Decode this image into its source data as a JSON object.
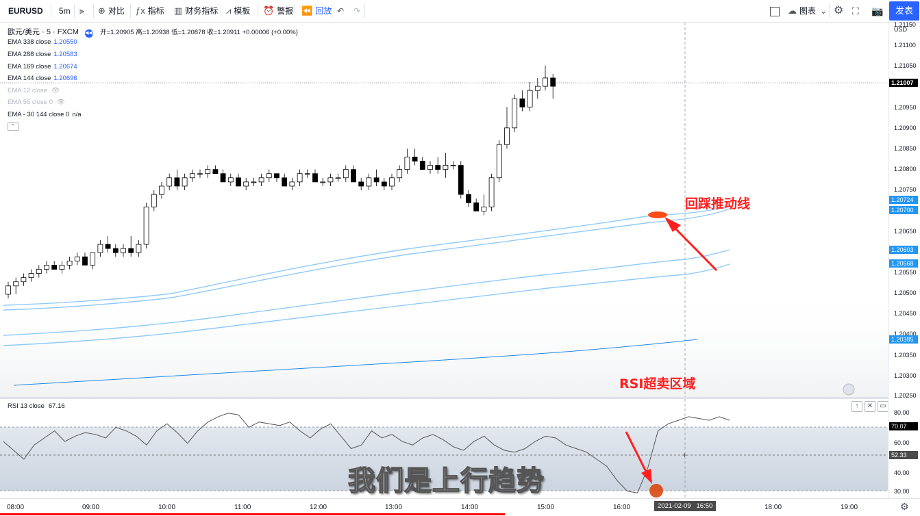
{
  "toolbar": {
    "symbol": "EURUSD",
    "interval": "5m",
    "compare": "对比",
    "indicators": "指标",
    "financials": "财务指标",
    "templates": "模板",
    "alert": "警报",
    "replay": "回放",
    "chart_menu": "图表",
    "publish": "发表"
  },
  "main_legend": {
    "title": "欧元/美元 · 5 · FXCM",
    "ohlc": "开=1.20905 高=1.20938 低=1.20878 收=1.20911 +0.00006 (+0.00%)",
    "studies": [
      {
        "name": "EMA 338 close",
        "value": "1.20550",
        "visible": true
      },
      {
        "name": "EMA 288 close",
        "value": "1.20583",
        "visible": true
      },
      {
        "name": "EMA 169 close",
        "value": "1.20674",
        "visible": true
      },
      {
        "name": "EMA 144 close",
        "value": "1.20696",
        "visible": true
      },
      {
        "name": "EMA 12 close",
        "value": "",
        "visible": false
      },
      {
        "name": "EMA 55 close 0",
        "value": "",
        "visible": false
      },
      {
        "name": "EMA - 30 144 close 0",
        "value": "n/a",
        "visible": true
      }
    ]
  },
  "rsi_legend": {
    "name": "RSI 13 close",
    "value": "67.16"
  },
  "price_axis": {
    "currency": "USD",
    "ticks": [
      "1.21150",
      "1.21100",
      "1.21050",
      "1.20950",
      "1.20900",
      "1.20850",
      "1.20800",
      "1.20750",
      "1.20650",
      "1.20550",
      "1.20500",
      "1.20450",
      "1.20400",
      "1.20350",
      "1.20300",
      "1.20250"
    ],
    "last_price": "1.21007",
    "ema_tags": [
      "1.20724",
      "1.20700",
      "1.20603",
      "1.20568",
      "1.20385"
    ]
  },
  "rsi_axis": {
    "ticks": [
      "80.00",
      "60.00",
      "50.00",
      "40.00",
      "30.00"
    ],
    "value_tag": "70.07",
    "crosshair_tag": "52.33"
  },
  "time_axis": {
    "ticks": [
      "08:00",
      "09:00",
      "10:00",
      "11:00",
      "12:00",
      "13:00",
      "14:00",
      "15:00",
      "16:00",
      "18:00",
      "19:00"
    ],
    "crosshair": "2021-02-09   16:50"
  },
  "annotations": {
    "pullback": "回踩推动线",
    "rsi_oversold": "RSI超卖区域",
    "subtitle": "我们是上行趋势"
  },
  "colors": {
    "up_candle": "#ffffff",
    "down_candle": "#000000",
    "ema": "#90caf9",
    "ema_dark": "#1e88e5",
    "rsi_line": "#555555",
    "annotation": "#ff1f1f",
    "accent": "#2962ff"
  },
  "chart_data": {
    "type": "candlestick",
    "x_ticks": [
      "08:00",
      "09:00",
      "10:00",
      "11:00",
      "12:00",
      "13:00",
      "14:00",
      "15:00",
      "16:00",
      "18:00",
      "19:00"
    ],
    "y_range": [
      1.2025,
      1.2115
    ],
    "candles": [
      [
        1.2051,
        1.2054,
        1.205,
        1.2053
      ],
      [
        1.2053,
        1.2055,
        1.2051,
        1.2054
      ],
      [
        1.2054,
        1.2056,
        1.2053,
        1.2055
      ],
      [
        1.2055,
        1.2057,
        1.2054,
        1.2056
      ],
      [
        1.2056,
        1.2058,
        1.2055,
        1.2057
      ],
      [
        1.2057,
        1.2059,
        1.2056,
        1.2058
      ],
      [
        1.2058,
        1.2059,
        1.2057,
        1.2057
      ],
      [
        1.2057,
        1.2059,
        1.2056,
        1.2058
      ],
      [
        1.2058,
        1.206,
        1.2057,
        1.2059
      ],
      [
        1.2059,
        1.2061,
        1.2058,
        1.206
      ],
      [
        1.206,
        1.2061,
        1.2058,
        1.2058
      ],
      [
        1.2058,
        1.2061,
        1.2057,
        1.2061
      ],
      [
        1.2061,
        1.2064,
        1.206,
        1.2063
      ],
      [
        1.2063,
        1.2065,
        1.2061,
        1.2062
      ],
      [
        1.2062,
        1.2063,
        1.206,
        1.2061
      ],
      [
        1.2061,
        1.2063,
        1.206,
        1.2062
      ],
      [
        1.2062,
        1.2065,
        1.206,
        1.2061
      ],
      [
        1.2061,
        1.2064,
        1.206,
        1.2063
      ],
      [
        1.2063,
        1.2073,
        1.2062,
        1.2072
      ],
      [
        1.2072,
        1.2076,
        1.2071,
        1.2075
      ],
      [
        1.2075,
        1.2078,
        1.2074,
        1.2077
      ],
      [
        1.2077,
        1.208,
        1.2076,
        1.2079
      ],
      [
        1.2079,
        1.2081,
        1.2076,
        1.2077
      ],
      [
        1.2077,
        1.208,
        1.2076,
        1.2079
      ],
      [
        1.2079,
        1.2081,
        1.2078,
        1.208
      ],
      [
        1.208,
        1.2081,
        1.2079,
        1.208
      ],
      [
        1.208,
        1.2082,
        1.2079,
        1.2081
      ],
      [
        1.2081,
        1.2082,
        1.208,
        1.208
      ],
      [
        1.208,
        1.2081,
        1.2078,
        1.2078
      ],
      [
        1.2078,
        1.208,
        1.2077,
        1.2079
      ],
      [
        1.2079,
        1.208,
        1.2077,
        1.2077
      ],
      [
        1.2077,
        1.2079,
        1.2076,
        1.2078
      ],
      [
        1.2078,
        1.2079,
        1.2077,
        1.2078
      ],
      [
        1.2078,
        1.208,
        1.2077,
        1.2079
      ],
      [
        1.2079,
        1.2081,
        1.2078,
        1.208
      ],
      [
        1.208,
        1.208,
        1.2078,
        1.2079
      ],
      [
        1.2079,
        1.208,
        1.2077,
        1.2077
      ],
      [
        1.2077,
        1.2079,
        1.2076,
        1.2078
      ],
      [
        1.2078,
        1.2081,
        1.2077,
        1.208
      ],
      [
        1.208,
        1.2081,
        1.2079,
        1.208
      ],
      [
        1.208,
        1.2081,
        1.2078,
        1.2078
      ],
      [
        1.2078,
        1.2079,
        1.2077,
        1.2078
      ],
      [
        1.2078,
        1.208,
        1.2077,
        1.2079
      ],
      [
        1.2079,
        1.208,
        1.2078,
        1.2079
      ],
      [
        1.2079,
        1.2082,
        1.2078,
        1.2081
      ],
      [
        1.2081,
        1.2082,
        1.2078,
        1.2078
      ],
      [
        1.2078,
        1.2079,
        1.2076,
        1.2077
      ],
      [
        1.2077,
        1.208,
        1.2076,
        1.2079
      ],
      [
        1.2079,
        1.2081,
        1.2077,
        1.2078
      ],
      [
        1.2078,
        1.2079,
        1.2076,
        1.2077
      ],
      [
        1.2077,
        1.208,
        1.2076,
        1.2079
      ],
      [
        1.2079,
        1.2082,
        1.2078,
        1.2081
      ],
      [
        1.2081,
        1.2086,
        1.208,
        1.2084
      ],
      [
        1.2084,
        1.2086,
        1.2082,
        1.2083
      ],
      [
        1.2083,
        1.2084,
        1.2081,
        1.2081
      ],
      [
        1.2081,
        1.2083,
        1.208,
        1.2082
      ],
      [
        1.2082,
        1.2084,
        1.208,
        1.2081
      ],
      [
        1.2081,
        1.2085,
        1.2079,
        1.2082
      ],
      [
        1.2082,
        1.2083,
        1.2081,
        1.2082
      ],
      [
        1.2082,
        1.2083,
        1.2074,
        1.2075
      ],
      [
        1.2075,
        1.2076,
        1.2072,
        1.2073
      ],
      [
        1.2073,
        1.2074,
        1.2071,
        1.2071
      ],
      [
        1.2071,
        1.2075,
        1.207,
        1.2072
      ],
      [
        1.2072,
        1.208,
        1.2071,
        1.2079
      ],
      [
        1.2079,
        1.2088,
        1.2078,
        1.2087
      ],
      [
        1.2087,
        1.2096,
        1.2086,
        1.2091
      ],
      [
        1.2091,
        1.2099,
        1.209,
        1.2098
      ],
      [
        1.2098,
        1.21,
        1.2095,
        1.2096
      ],
      [
        1.2096,
        1.2102,
        1.2095,
        1.21
      ],
      [
        1.21,
        1.2103,
        1.2098,
        1.2101
      ],
      [
        1.2101,
        1.2106,
        1.21,
        1.2103
      ],
      [
        1.2103,
        1.2104,
        1.2098,
        1.2101
      ]
    ],
    "ema_series": [
      {
        "name": "EMA 144 close",
        "last": 1.20696
      },
      {
        "name": "EMA 169 close",
        "last": 1.20674
      },
      {
        "name": "EMA 288 close",
        "last": 1.20583
      },
      {
        "name": "EMA 338 close",
        "last": 1.2055
      },
      {
        "name": "EMA - 30 144 close 0",
        "last": 1.20385
      }
    ],
    "rsi": {
      "y_range": [
        28,
        84
      ],
      "overbought": 70,
      "values": [
        60,
        55,
        50,
        58,
        62,
        66,
        60,
        63,
        65,
        64,
        62,
        68,
        66,
        63,
        58,
        66,
        70,
        65,
        59,
        66,
        71,
        74,
        76,
        75,
        68,
        71,
        70,
        69,
        71,
        66,
        62,
        67,
        70,
        63,
        56,
        58,
        66,
        62,
        64,
        60,
        58,
        62,
        64,
        61,
        57,
        55,
        60,
        63,
        58,
        55,
        54,
        56,
        60,
        63,
        62,
        58,
        56,
        54,
        50,
        46,
        38,
        32,
        31,
        45,
        66,
        70,
        72,
        74,
        73,
        72,
        74,
        72
      ]
    }
  }
}
